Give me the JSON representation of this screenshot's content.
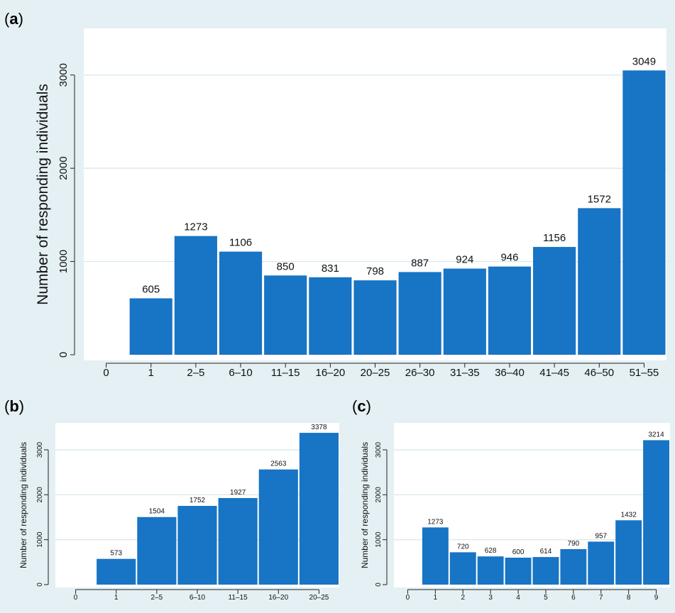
{
  "colors": {
    "bar": "#1874c4",
    "plot_bg": "#ffffff",
    "grid": "#d4e6ec",
    "figure_bg": "#e4f0f3"
  },
  "chart_data": [
    {
      "panel": "a",
      "type": "bar",
      "ylabel": "Number of  responding individuals",
      "categories": [
        "0",
        "1",
        "2–5",
        "6–10",
        "11–15",
        "16–20",
        "20–25",
        "26–30",
        "31–35",
        "36–40",
        "41–45",
        "46–50",
        "51–55"
      ],
      "values": [
        null,
        605,
        1273,
        1106,
        850,
        831,
        798,
        887,
        924,
        946,
        1156,
        1572,
        3049
      ],
      "yticks": [
        0,
        1000,
        2000,
        3000
      ],
      "ylim": [
        0,
        3500
      ],
      "grid": "horizontal"
    },
    {
      "panel": "b",
      "type": "bar",
      "ylabel": "Number of  responding individuals",
      "categories": [
        "0",
        "1",
        "2–5",
        "6–10",
        "11–15",
        "16–20",
        "20–25"
      ],
      "values": [
        null,
        573,
        1504,
        1752,
        1927,
        2563,
        3378
      ],
      "yticks": [
        0,
        1000,
        2000,
        3000
      ],
      "ylim": [
        0,
        3600
      ],
      "grid": "horizontal"
    },
    {
      "panel": "c",
      "type": "bar",
      "ylabel": "Number of  responding individuals",
      "categories": [
        "0",
        "1",
        "2",
        "3",
        "4",
        "5",
        "6",
        "7",
        "8",
        "9"
      ],
      "values": [
        null,
        1273,
        720,
        628,
        600,
        614,
        790,
        957,
        1432,
        3214
      ],
      "yticks": [
        0,
        1000,
        2000,
        3000
      ],
      "ylim": [
        0,
        3600
      ],
      "grid": "horizontal"
    }
  ]
}
